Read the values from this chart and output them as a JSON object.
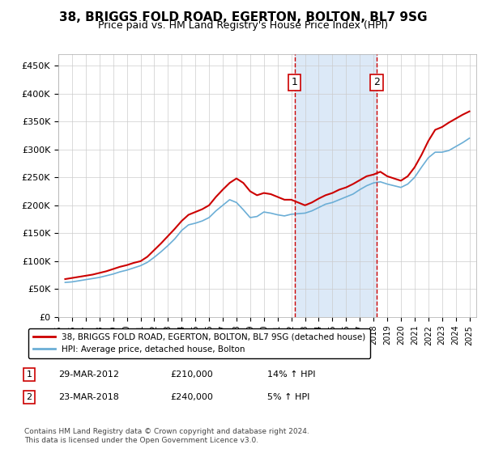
{
  "title": "38, BRIGGS FOLD ROAD, EGERTON, BOLTON, BL7 9SG",
  "subtitle": "Price paid vs. HM Land Registry's House Price Index (HPI)",
  "ylabel_ticks": [
    "£0",
    "£50K",
    "£100K",
    "£150K",
    "£200K",
    "£250K",
    "£300K",
    "£350K",
    "£400K",
    "£450K"
  ],
  "ylim": [
    0,
    470000
  ],
  "xlim_start": 1995.0,
  "xlim_end": 2025.5,
  "purchase1": {
    "date_num": 2012.24,
    "price": 210000,
    "label": "1",
    "date_str": "29-MAR-2012",
    "pct": "14%",
    "dir": "↑"
  },
  "purchase2": {
    "date_num": 2018.22,
    "price": 240000,
    "label": "2",
    "date_str": "23-MAR-2018",
    "pct": "5%",
    "dir": "↑"
  },
  "highlight_color": "#dce9f7",
  "hpi_line_color": "#6baed6",
  "price_line_color": "#cc0000",
  "marker_box_color": "#cc0000",
  "legend_label_red": "38, BRIGGS FOLD ROAD, EGERTON, BOLTON, BL7 9SG (detached house)",
  "legend_label_blue": "HPI: Average price, detached house, Bolton",
  "footer": "Contains HM Land Registry data © Crown copyright and database right 2024.\nThis data is licensed under the Open Government Licence v3.0.",
  "xticks": [
    1995,
    1996,
    1997,
    1998,
    1999,
    2000,
    2001,
    2002,
    2003,
    2004,
    2005,
    2006,
    2007,
    2008,
    2009,
    2010,
    2011,
    2012,
    2013,
    2014,
    2015,
    2016,
    2017,
    2018,
    2019,
    2020,
    2021,
    2022,
    2023,
    2024,
    2025
  ],
  "hpi_data": [
    [
      1995.5,
      62000
    ],
    [
      1996.0,
      63000
    ],
    [
      1996.5,
      65000
    ],
    [
      1997.0,
      67000
    ],
    [
      1997.5,
      69000
    ],
    [
      1998.0,
      71000
    ],
    [
      1998.5,
      74000
    ],
    [
      1999.0,
      77000
    ],
    [
      1999.5,
      81000
    ],
    [
      2000.0,
      84000
    ],
    [
      2000.5,
      88000
    ],
    [
      2001.0,
      92000
    ],
    [
      2001.5,
      98000
    ],
    [
      2002.0,
      107000
    ],
    [
      2002.5,
      117000
    ],
    [
      2003.0,
      128000
    ],
    [
      2003.5,
      140000
    ],
    [
      2004.0,
      155000
    ],
    [
      2004.5,
      165000
    ],
    [
      2005.0,
      168000
    ],
    [
      2005.5,
      172000
    ],
    [
      2006.0,
      178000
    ],
    [
      2006.5,
      190000
    ],
    [
      2007.0,
      200000
    ],
    [
      2007.5,
      210000
    ],
    [
      2008.0,
      205000
    ],
    [
      2008.5,
      192000
    ],
    [
      2009.0,
      178000
    ],
    [
      2009.5,
      180000
    ],
    [
      2010.0,
      188000
    ],
    [
      2010.5,
      186000
    ],
    [
      2011.0,
      183000
    ],
    [
      2011.5,
      181000
    ],
    [
      2012.0,
      184000
    ],
    [
      2012.5,
      185000
    ],
    [
      2013.0,
      186000
    ],
    [
      2013.5,
      190000
    ],
    [
      2014.0,
      196000
    ],
    [
      2014.5,
      202000
    ],
    [
      2015.0,
      205000
    ],
    [
      2015.5,
      210000
    ],
    [
      2016.0,
      215000
    ],
    [
      2016.5,
      220000
    ],
    [
      2017.0,
      228000
    ],
    [
      2017.5,
      235000
    ],
    [
      2018.0,
      240000
    ],
    [
      2018.5,
      242000
    ],
    [
      2019.0,
      238000
    ],
    [
      2019.5,
      235000
    ],
    [
      2020.0,
      232000
    ],
    [
      2020.5,
      238000
    ],
    [
      2021.0,
      250000
    ],
    [
      2021.5,
      268000
    ],
    [
      2022.0,
      285000
    ],
    [
      2022.5,
      295000
    ],
    [
      2023.0,
      295000
    ],
    [
      2023.5,
      298000
    ],
    [
      2024.0,
      305000
    ],
    [
      2024.5,
      312000
    ],
    [
      2025.0,
      320000
    ]
  ],
  "price_data": [
    [
      1995.5,
      68000
    ],
    [
      1996.0,
      70000
    ],
    [
      1996.5,
      72000
    ],
    [
      1997.0,
      74000
    ],
    [
      1997.5,
      76000
    ],
    [
      1998.0,
      79000
    ],
    [
      1998.5,
      82000
    ],
    [
      1999.0,
      86000
    ],
    [
      1999.5,
      90000
    ],
    [
      2000.0,
      93000
    ],
    [
      2000.5,
      97000
    ],
    [
      2001.0,
      100000
    ],
    [
      2001.5,
      108000
    ],
    [
      2002.0,
      120000
    ],
    [
      2002.5,
      132000
    ],
    [
      2003.0,
      145000
    ],
    [
      2003.5,
      158000
    ],
    [
      2004.0,
      172000
    ],
    [
      2004.5,
      183000
    ],
    [
      2005.0,
      188000
    ],
    [
      2005.5,
      193000
    ],
    [
      2006.0,
      200000
    ],
    [
      2006.5,
      215000
    ],
    [
      2007.0,
      228000
    ],
    [
      2007.5,
      240000
    ],
    [
      2008.0,
      248000
    ],
    [
      2008.5,
      240000
    ],
    [
      2009.0,
      225000
    ],
    [
      2009.5,
      218000
    ],
    [
      2010.0,
      222000
    ],
    [
      2010.5,
      220000
    ],
    [
      2011.0,
      215000
    ],
    [
      2011.5,
      210000
    ],
    [
      2012.0,
      210000
    ],
    [
      2012.5,
      205000
    ],
    [
      2013.0,
      200000
    ],
    [
      2013.5,
      205000
    ],
    [
      2014.0,
      212000
    ],
    [
      2014.5,
      218000
    ],
    [
      2015.0,
      222000
    ],
    [
      2015.5,
      228000
    ],
    [
      2016.0,
      232000
    ],
    [
      2016.5,
      238000
    ],
    [
      2017.0,
      245000
    ],
    [
      2017.5,
      252000
    ],
    [
      2018.0,
      255000
    ],
    [
      2018.5,
      260000
    ],
    [
      2019.0,
      252000
    ],
    [
      2019.5,
      248000
    ],
    [
      2020.0,
      244000
    ],
    [
      2020.5,
      252000
    ],
    [
      2021.0,
      268000
    ],
    [
      2021.5,
      290000
    ],
    [
      2022.0,
      315000
    ],
    [
      2022.5,
      335000
    ],
    [
      2023.0,
      340000
    ],
    [
      2023.5,
      348000
    ],
    [
      2024.0,
      355000
    ],
    [
      2024.5,
      362000
    ],
    [
      2025.0,
      368000
    ]
  ]
}
